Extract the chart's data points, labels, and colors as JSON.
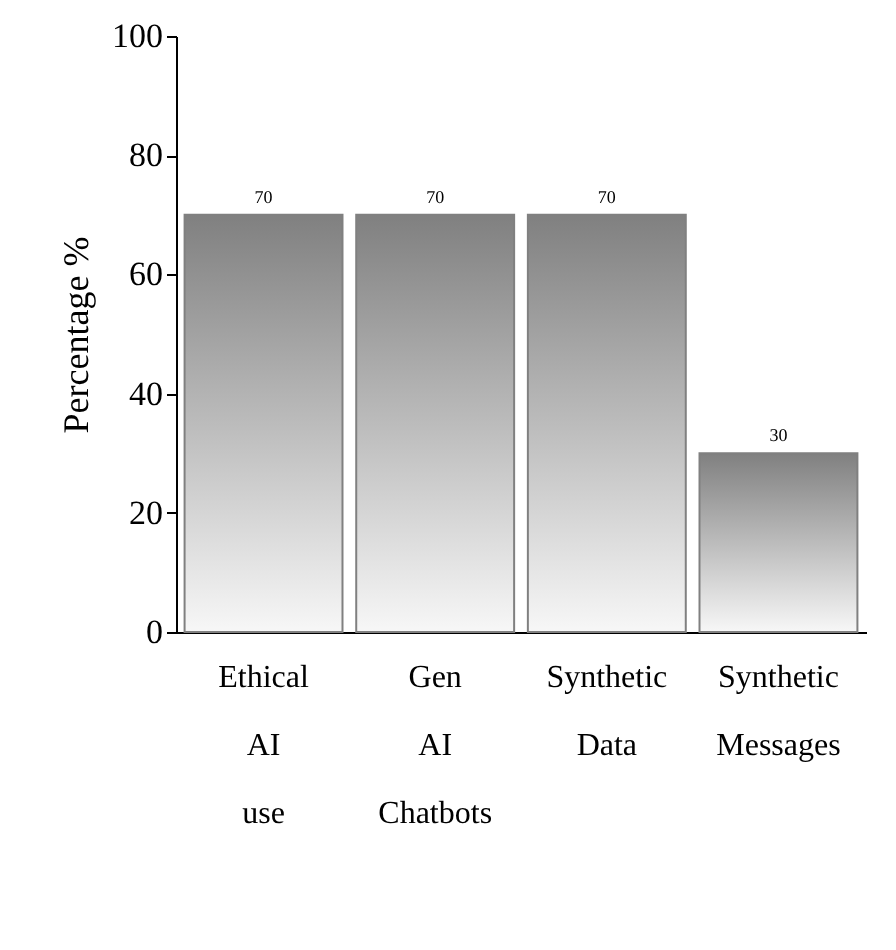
{
  "chart_data": {
    "type": "bar",
    "ylabel": "Percentage %",
    "categories": [
      "Ethical AI use",
      "Gen AI Chatbots",
      "Synthetic Data",
      "Synthetic Messages"
    ],
    "values": [
      70,
      70,
      70,
      30
    ],
    "color": "#808080",
    "ylim": [
      0,
      100
    ],
    "yticks": [
      0,
      20,
      40,
      60,
      80,
      100
    ],
    "data_labels": true,
    "grid": false
  }
}
